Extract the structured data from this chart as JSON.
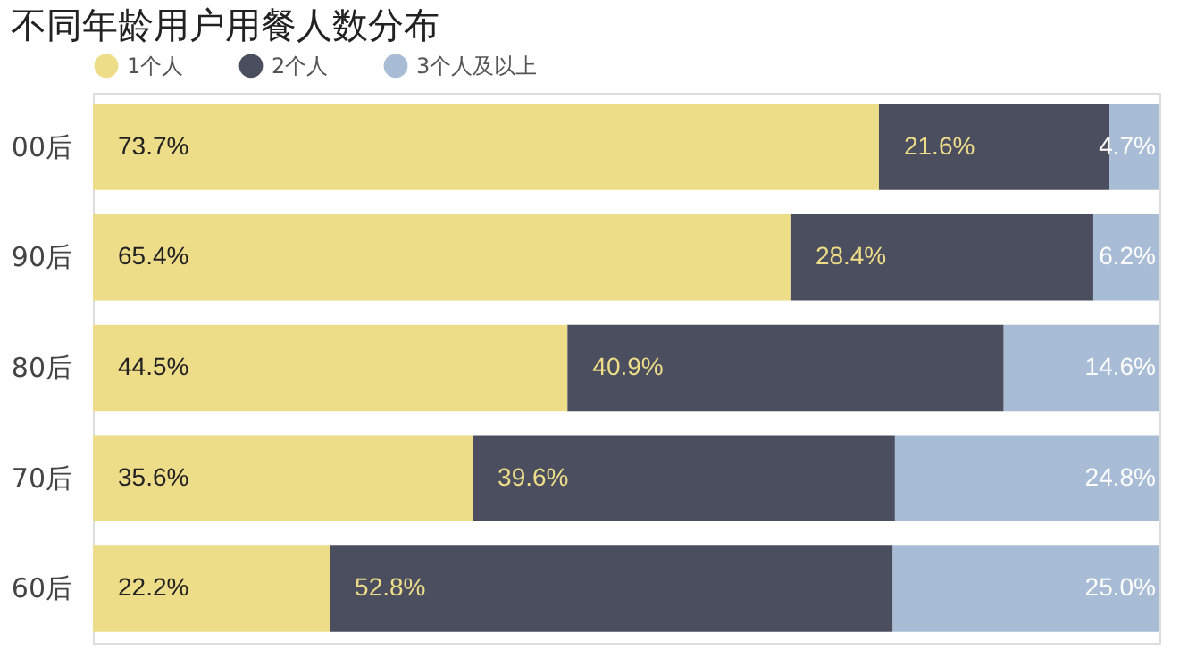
{
  "chart_data": {
    "type": "bar",
    "orientation": "horizontal",
    "stacked": true,
    "title": "不同年龄用户用餐人数分布",
    "categories": [
      "00后",
      "90后",
      "80后",
      "70后",
      "60后"
    ],
    "xlim": [
      0,
      100
    ],
    "tick_labels": "y",
    "legend": "top left",
    "grid": false,
    "series": [
      {
        "name": "1个人",
        "color": "#eedd88",
        "values": [
          73.7,
          65.4,
          44.5,
          35.6,
          22.2
        ],
        "value_labels": [
          "73.7%",
          "65.4%",
          "44.5%",
          "35.6%",
          "22.2%"
        ]
      },
      {
        "name": "2个人",
        "color": "#4a4e5e",
        "values": [
          21.6,
          28.4,
          40.9,
          39.6,
          52.8
        ],
        "value_labels": [
          "21.6%",
          "28.4%",
          "40.9%",
          "39.6%",
          "52.8%"
        ]
      },
      {
        "name": "3个人及以上",
        "color": "#a9bcd6",
        "values": [
          4.7,
          6.2,
          14.6,
          24.8,
          25.0
        ],
        "value_labels": [
          "4.7%",
          "6.2%",
          "14.6%",
          "24.8%",
          "25.0%"
        ]
      }
    ]
  }
}
